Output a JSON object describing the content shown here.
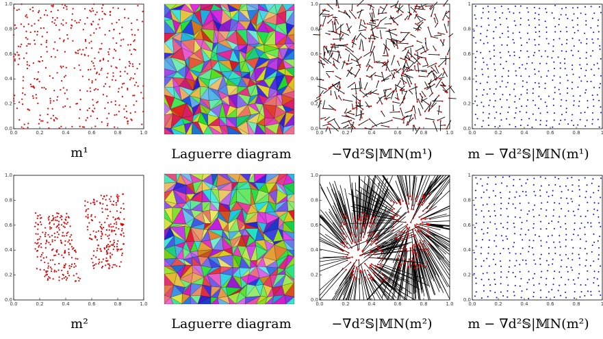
{
  "axis_ticks": [
    "0.0",
    "0.2",
    "0.4",
    "0.6",
    "0.8",
    "1.0"
  ],
  "axis_ticks_short_last": [
    "0.0",
    "0.2",
    "0.4",
    "0.6",
    "0.8",
    "1"
  ],
  "captions": {
    "r1c1": "m¹",
    "r1c2": "Laguerre diagram",
    "r1c3": "−∇d²𝕊|𝕄N(m¹)",
    "r1c4": "m − ∇d²𝕊|𝕄N(m¹)",
    "r2c1": "m²",
    "r2c2": "Laguerre diagram",
    "r2c3": "−∇d²𝕊|𝕄N(m²)",
    "r2c4": "m − ∇d²𝕊|𝕄N(m²)"
  },
  "colors": {
    "red_points": "#e00000",
    "blue_points": "#0000ee",
    "arrows": "#000000",
    "axes": "#000000"
  }
}
